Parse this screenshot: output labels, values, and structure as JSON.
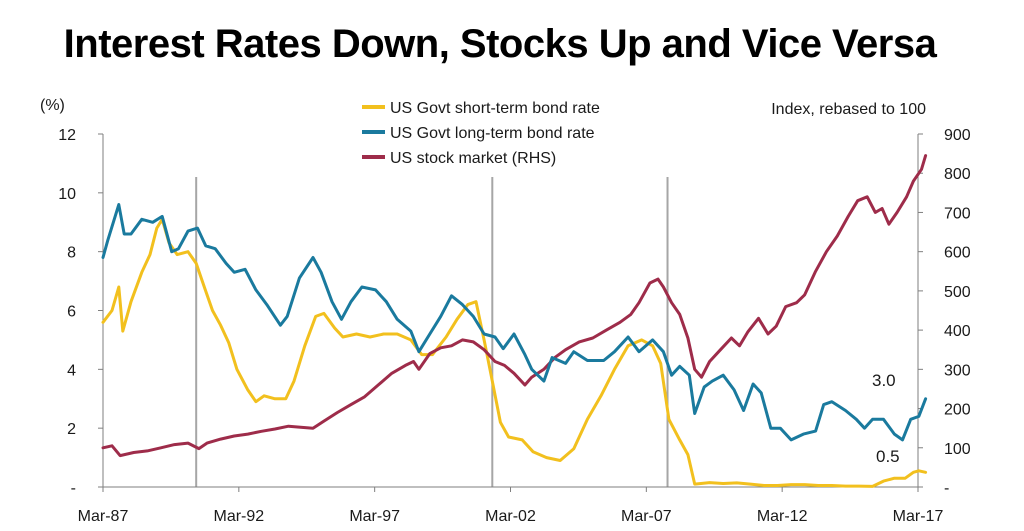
{
  "chart_data": {
    "type": "line",
    "title": "Interest Rates Down, Stocks Up and Vice Versa",
    "left_axis_unit": "(%)",
    "right_axis_unit": "Index, rebased to 100",
    "x_ticks": [
      "Mar-87",
      "Mar-92",
      "Mar-97",
      "Mar-02",
      "Mar-07",
      "Mar-12",
      "Mar-17"
    ],
    "x_tick_values": [
      1987.17,
      1992.17,
      1997.17,
      2002.17,
      2007.17,
      2012.17,
      2017.17
    ],
    "xlim": [
      1987.17,
      2017.17
    ],
    "ylim_left": [
      0,
      12
    ],
    "ylim_right": [
      0,
      900
    ],
    "left_ticks": [
      {
        "value": 0,
        "label": "-"
      },
      {
        "value": 2,
        "label": "2"
      },
      {
        "value": 4,
        "label": "4"
      },
      {
        "value": 6,
        "label": "6"
      },
      {
        "value": 8,
        "label": "8"
      },
      {
        "value": 10,
        "label": "10"
      },
      {
        "value": 12,
        "label": "12"
      }
    ],
    "right_ticks": [
      {
        "value": 0,
        "label": "-"
      },
      {
        "value": 100,
        "label": "100"
      },
      {
        "value": 200,
        "label": "200"
      },
      {
        "value": 300,
        "label": "300"
      },
      {
        "value": 400,
        "label": "400"
      },
      {
        "value": 500,
        "label": "500"
      },
      {
        "value": 600,
        "label": "600"
      },
      {
        "value": 700,
        "label": "700"
      },
      {
        "value": 800,
        "label": "800"
      },
      {
        "value": 900,
        "label": "900"
      }
    ],
    "recession_lines": [
      1990.6,
      2001.5,
      2007.95
    ],
    "legend_position": "top-center",
    "grid": false,
    "series": [
      {
        "name": "US Govt short-term bond rate",
        "axis": "left",
        "color": "#F2C01E",
        "points": [
          [
            1987.17,
            5.6
          ],
          [
            1987.5,
            6.0
          ],
          [
            1987.75,
            6.8
          ],
          [
            1987.9,
            5.3
          ],
          [
            1988.2,
            6.3
          ],
          [
            1988.6,
            7.3
          ],
          [
            1988.9,
            7.9
          ],
          [
            1989.15,
            8.8
          ],
          [
            1989.35,
            9.1
          ],
          [
            1989.6,
            8.3
          ],
          [
            1989.9,
            7.9
          ],
          [
            1990.3,
            8.0
          ],
          [
            1990.6,
            7.6
          ],
          [
            1990.9,
            6.8
          ],
          [
            1991.2,
            6.0
          ],
          [
            1991.5,
            5.5
          ],
          [
            1991.8,
            4.9
          ],
          [
            1992.1,
            4.0
          ],
          [
            1992.5,
            3.3
          ],
          [
            1992.8,
            2.9
          ],
          [
            1993.1,
            3.1
          ],
          [
            1993.5,
            3.0
          ],
          [
            1993.9,
            3.0
          ],
          [
            1994.2,
            3.6
          ],
          [
            1994.6,
            4.8
          ],
          [
            1995.0,
            5.8
          ],
          [
            1995.3,
            5.9
          ],
          [
            1995.7,
            5.4
          ],
          [
            1996.0,
            5.1
          ],
          [
            1996.5,
            5.2
          ],
          [
            1997.0,
            5.1
          ],
          [
            1997.5,
            5.2
          ],
          [
            1998.0,
            5.2
          ],
          [
            1998.5,
            5.0
          ],
          [
            1998.9,
            4.5
          ],
          [
            1999.3,
            4.5
          ],
          [
            1999.8,
            5.1
          ],
          [
            2000.2,
            5.7
          ],
          [
            2000.6,
            6.2
          ],
          [
            2000.9,
            6.3
          ],
          [
            2001.2,
            5.0
          ],
          [
            2001.5,
            3.6
          ],
          [
            2001.8,
            2.2
          ],
          [
            2002.1,
            1.7
          ],
          [
            2002.6,
            1.6
          ],
          [
            2003.0,
            1.2
          ],
          [
            2003.5,
            1.0
          ],
          [
            2004.0,
            0.9
          ],
          [
            2004.5,
            1.3
          ],
          [
            2005.0,
            2.3
          ],
          [
            2005.5,
            3.1
          ],
          [
            2006.0,
            4.0
          ],
          [
            2006.5,
            4.8
          ],
          [
            2007.0,
            5.0
          ],
          [
            2007.4,
            4.8
          ],
          [
            2007.7,
            4.2
          ],
          [
            2008.0,
            2.3
          ],
          [
            2008.4,
            1.6
          ],
          [
            2008.7,
            1.1
          ],
          [
            2008.95,
            0.1
          ],
          [
            2009.5,
            0.15
          ],
          [
            2010.0,
            0.12
          ],
          [
            2010.5,
            0.14
          ],
          [
            2011.0,
            0.1
          ],
          [
            2011.5,
            0.05
          ],
          [
            2012.0,
            0.05
          ],
          [
            2012.5,
            0.08
          ],
          [
            2013.0,
            0.08
          ],
          [
            2013.5,
            0.05
          ],
          [
            2014.0,
            0.05
          ],
          [
            2014.5,
            0.03
          ],
          [
            2015.0,
            0.03
          ],
          [
            2015.5,
            0.02
          ],
          [
            2015.9,
            0.2
          ],
          [
            2016.3,
            0.3
          ],
          [
            2016.7,
            0.3
          ],
          [
            2017.0,
            0.5
          ],
          [
            2017.2,
            0.55
          ],
          [
            2017.45,
            0.5
          ]
        ]
      },
      {
        "name": "US Govt long-term bond rate",
        "axis": "left",
        "color": "#1A7A9E",
        "points": [
          [
            1987.17,
            7.8
          ],
          [
            1987.35,
            8.4
          ],
          [
            1987.75,
            9.6
          ],
          [
            1987.95,
            8.6
          ],
          [
            1988.2,
            8.6
          ],
          [
            1988.6,
            9.1
          ],
          [
            1989.0,
            9.0
          ],
          [
            1989.35,
            9.2
          ],
          [
            1989.7,
            8.0
          ],
          [
            1989.95,
            8.1
          ],
          [
            1990.3,
            8.7
          ],
          [
            1990.65,
            8.8
          ],
          [
            1990.95,
            8.2
          ],
          [
            1991.3,
            8.1
          ],
          [
            1991.7,
            7.6
          ],
          [
            1992.0,
            7.3
          ],
          [
            1992.4,
            7.4
          ],
          [
            1992.8,
            6.7
          ],
          [
            1993.2,
            6.2
          ],
          [
            1993.7,
            5.5
          ],
          [
            1993.95,
            5.8
          ],
          [
            1994.4,
            7.1
          ],
          [
            1994.9,
            7.8
          ],
          [
            1995.2,
            7.3
          ],
          [
            1995.6,
            6.3
          ],
          [
            1995.95,
            5.7
          ],
          [
            1996.3,
            6.3
          ],
          [
            1996.7,
            6.8
          ],
          [
            1997.2,
            6.7
          ],
          [
            1997.6,
            6.3
          ],
          [
            1998.0,
            5.7
          ],
          [
            1998.5,
            5.3
          ],
          [
            1998.8,
            4.6
          ],
          [
            1999.2,
            5.2
          ],
          [
            1999.6,
            5.8
          ],
          [
            2000.0,
            6.5
          ],
          [
            2000.4,
            6.2
          ],
          [
            2000.8,
            5.8
          ],
          [
            2001.2,
            5.2
          ],
          [
            2001.6,
            5.1
          ],
          [
            2001.9,
            4.7
          ],
          [
            2002.3,
            5.2
          ],
          [
            2002.7,
            4.5
          ],
          [
            2002.95,
            4.0
          ],
          [
            2003.4,
            3.6
          ],
          [
            2003.7,
            4.4
          ],
          [
            2004.2,
            4.2
          ],
          [
            2004.5,
            4.6
          ],
          [
            2005.0,
            4.3
          ],
          [
            2005.6,
            4.3
          ],
          [
            2006.0,
            4.6
          ],
          [
            2006.5,
            5.1
          ],
          [
            2006.9,
            4.6
          ],
          [
            2007.4,
            5.0
          ],
          [
            2007.8,
            4.6
          ],
          [
            2008.1,
            3.8
          ],
          [
            2008.4,
            4.1
          ],
          [
            2008.75,
            3.8
          ],
          [
            2008.95,
            2.5
          ],
          [
            2009.3,
            3.4
          ],
          [
            2009.6,
            3.6
          ],
          [
            2010.0,
            3.8
          ],
          [
            2010.4,
            3.3
          ],
          [
            2010.75,
            2.6
          ],
          [
            2011.1,
            3.5
          ],
          [
            2011.4,
            3.2
          ],
          [
            2011.75,
            2.0
          ],
          [
            2012.1,
            2.0
          ],
          [
            2012.5,
            1.6
          ],
          [
            2012.95,
            1.8
          ],
          [
            2013.4,
            1.9
          ],
          [
            2013.7,
            2.8
          ],
          [
            2014.0,
            2.9
          ],
          [
            2014.5,
            2.6
          ],
          [
            2014.9,
            2.3
          ],
          [
            2015.2,
            2.0
          ],
          [
            2015.5,
            2.3
          ],
          [
            2015.9,
            2.3
          ],
          [
            2016.3,
            1.8
          ],
          [
            2016.6,
            1.6
          ],
          [
            2016.9,
            2.3
          ],
          [
            2017.2,
            2.4
          ],
          [
            2017.45,
            3.0
          ]
        ]
      },
      {
        "name": "US stock market (RHS)",
        "axis": "right",
        "color": "#9E2C4A",
        "points": [
          [
            1987.17,
            100
          ],
          [
            1987.5,
            105
          ],
          [
            1987.8,
            80
          ],
          [
            1988.3,
            88
          ],
          [
            1988.8,
            92
          ],
          [
            1989.3,
            100
          ],
          [
            1989.8,
            108
          ],
          [
            1990.3,
            112
          ],
          [
            1990.7,
            98
          ],
          [
            1991.0,
            112
          ],
          [
            1991.5,
            122
          ],
          [
            1992.0,
            130
          ],
          [
            1992.5,
            135
          ],
          [
            1993.0,
            142
          ],
          [
            1993.5,
            148
          ],
          [
            1994.0,
            155
          ],
          [
            1994.5,
            152
          ],
          [
            1994.9,
            150
          ],
          [
            1995.3,
            168
          ],
          [
            1995.8,
            190
          ],
          [
            1996.3,
            210
          ],
          [
            1996.8,
            230
          ],
          [
            1997.3,
            260
          ],
          [
            1997.8,
            290
          ],
          [
            1998.3,
            310
          ],
          [
            1998.6,
            320
          ],
          [
            1998.8,
            300
          ],
          [
            1999.2,
            340
          ],
          [
            1999.6,
            355
          ],
          [
            2000.0,
            360
          ],
          [
            2000.4,
            375
          ],
          [
            2000.8,
            370
          ],
          [
            2001.2,
            350
          ],
          [
            2001.6,
            320
          ],
          [
            2001.95,
            310
          ],
          [
            2002.3,
            290
          ],
          [
            2002.7,
            260
          ],
          [
            2002.95,
            280
          ],
          [
            2003.4,
            300
          ],
          [
            2003.8,
            330
          ],
          [
            2004.2,
            350
          ],
          [
            2004.7,
            370
          ],
          [
            2005.2,
            380
          ],
          [
            2005.7,
            400
          ],
          [
            2006.2,
            420
          ],
          [
            2006.6,
            440
          ],
          [
            2006.9,
            470
          ],
          [
            2007.3,
            520
          ],
          [
            2007.6,
            530
          ],
          [
            2007.8,
            510
          ],
          [
            2008.1,
            470
          ],
          [
            2008.4,
            440
          ],
          [
            2008.7,
            380
          ],
          [
            2008.95,
            300
          ],
          [
            2009.2,
            280
          ],
          [
            2009.5,
            320
          ],
          [
            2009.9,
            350
          ],
          [
            2010.3,
            380
          ],
          [
            2010.6,
            360
          ],
          [
            2010.9,
            395
          ],
          [
            2011.3,
            430
          ],
          [
            2011.65,
            390
          ],
          [
            2011.95,
            410
          ],
          [
            2012.3,
            460
          ],
          [
            2012.7,
            470
          ],
          [
            2013.0,
            490
          ],
          [
            2013.4,
            550
          ],
          [
            2013.8,
            600
          ],
          [
            2014.2,
            640
          ],
          [
            2014.6,
            690
          ],
          [
            2014.95,
            730
          ],
          [
            2015.3,
            740
          ],
          [
            2015.6,
            700
          ],
          [
            2015.85,
            710
          ],
          [
            2016.1,
            670
          ],
          [
            2016.4,
            700
          ],
          [
            2016.75,
            740
          ],
          [
            2017.0,
            780
          ],
          [
            2017.3,
            810
          ],
          [
            2017.45,
            845
          ]
        ]
      }
    ],
    "annotations": [
      {
        "text": "3.0",
        "series": "US Govt long-term bond rate"
      },
      {
        "text": "0.5",
        "series": "US Govt short-term bond rate"
      }
    ]
  }
}
